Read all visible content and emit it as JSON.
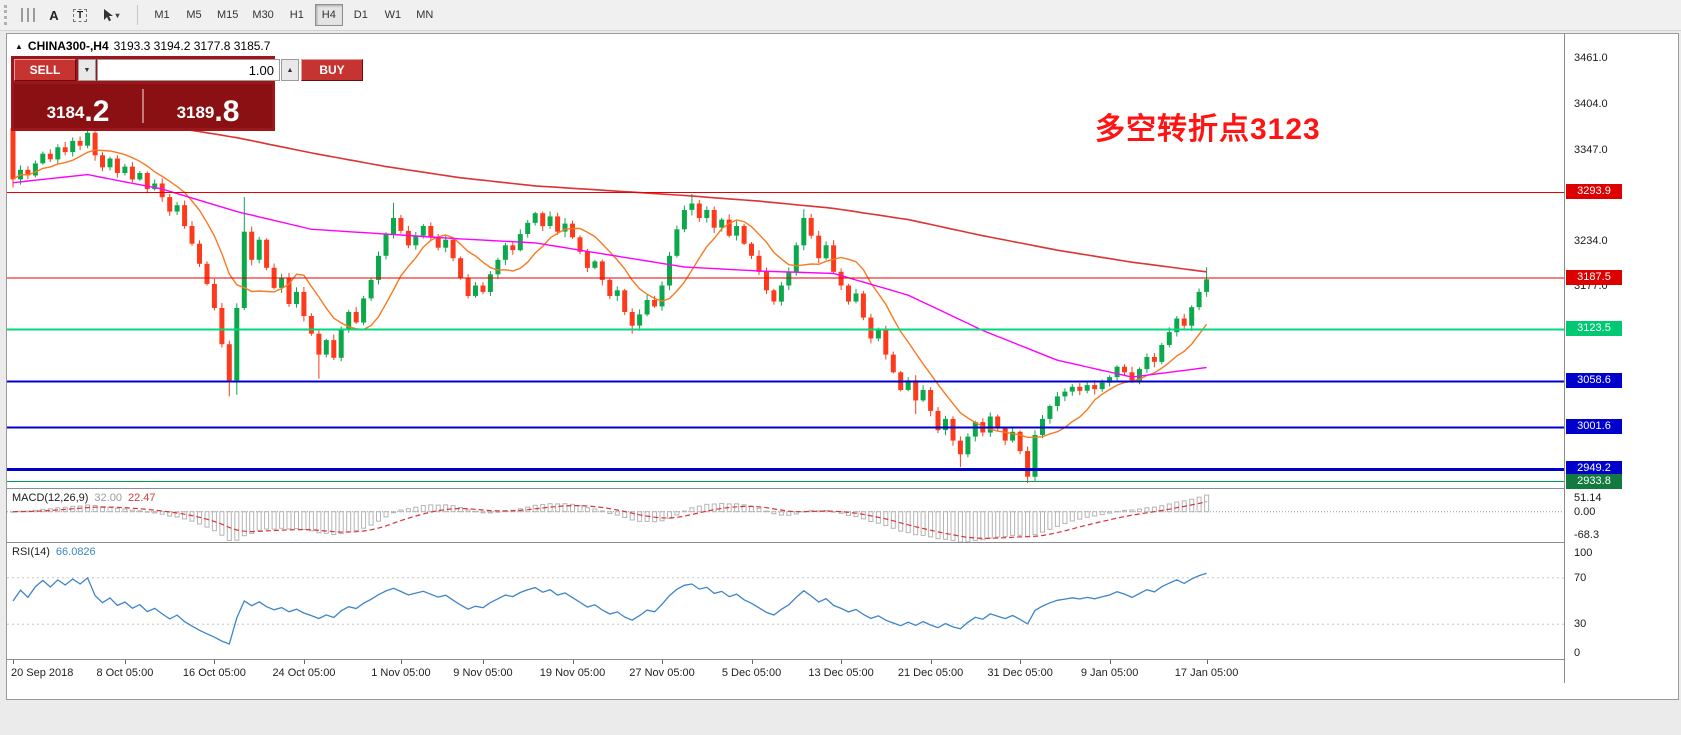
{
  "colors": {
    "trade-panel-bg": "#9c161a",
    "trade-button": "#c53431",
    "trade-price-bg": "#8a1013",
    "annotation-red": "#ff1414",
    "up-candle": "#0ba94c",
    "down-candle": "#fd3b1c",
    "macd-signal": "#d83434",
    "rsi-blue": "#3d85c8"
  },
  "toolbar": {
    "icons": {
      "text_label_glyph": "A",
      "text_box_glyph": "T",
      "cursor_caret": "▾"
    },
    "timeframes": [
      {
        "label": "M1",
        "active": false
      },
      {
        "label": "M5",
        "active": false
      },
      {
        "label": "M15",
        "active": false
      },
      {
        "label": "M30",
        "active": false
      },
      {
        "label": "H1",
        "active": false
      },
      {
        "label": "H4",
        "active": true
      },
      {
        "label": "D1",
        "active": false
      },
      {
        "label": "W1",
        "active": false
      },
      {
        "label": "MN",
        "active": false
      }
    ]
  },
  "chart": {
    "symbol_line": {
      "collapse_glyph": "▲",
      "symbol": "CHINA300-,H4",
      "ohlc": "3193.3 3194.2 3177.8 3185.7"
    },
    "trade_panel": {
      "sell_label": "SELL",
      "buy_label": "BUY",
      "volume": "1.00",
      "volume_down_glyph": "▼",
      "volume_up_glyph": "▲",
      "bid_main": "3184",
      "bid_pip": ".2",
      "ask_main": "3189",
      "ask_pip": ".8"
    },
    "annotation": {
      "text": "多空转折点3123"
    }
  },
  "chart_data": {
    "type": "candlestick",
    "symbol": "CHINA300-",
    "timeframe": "H4",
    "ohlc_display": {
      "open": "3193.3",
      "high": "3194.2",
      "low": "3177.8",
      "close": "3185.7"
    },
    "ylim": [
      2926,
      3491
    ],
    "open_first": 3374,
    "closes": [
      3310,
      3322,
      3315,
      3330,
      3342,
      3335,
      3350,
      3344,
      3358,
      3352,
      3368,
      3340,
      3325,
      3336,
      3318,
      3326,
      3310,
      3318,
      3298,
      3305,
      3288,
      3270,
      3278,
      3252,
      3230,
      3205,
      3180,
      3150,
      3105,
      3060,
      3150,
      3245,
      3210,
      3235,
      3200,
      3175,
      3188,
      3155,
      3170,
      3140,
      3118,
      3092,
      3110,
      3088,
      3122,
      3145,
      3132,
      3162,
      3185,
      3215,
      3242,
      3262,
      3246,
      3228,
      3240,
      3252,
      3238,
      3225,
      3235,
      3212,
      3188,
      3165,
      3178,
      3170,
      3192,
      3210,
      3228,
      3222,
      3242,
      3256,
      3268,
      3252,
      3264,
      3245,
      3255,
      3238,
      3220,
      3200,
      3208,
      3185,
      3165,
      3172,
      3145,
      3128,
      3142,
      3160,
      3152,
      3178,
      3215,
      3248,
      3272,
      3280,
      3262,
      3272,
      3250,
      3260,
      3240,
      3252,
      3230,
      3215,
      3195,
      3172,
      3158,
      3178,
      3195,
      3228,
      3262,
      3240,
      3212,
      3228,
      3195,
      3178,
      3158,
      3168,
      3138,
      3112,
      3122,
      3092,
      3070,
      3048,
      3060,
      3035,
      3048,
      3022,
      2998,
      3012,
      2985,
      2968,
      2990,
      3008,
      2995,
      3015,
      3000,
      2985,
      2996,
      2972,
      2940,
      2992,
      3012,
      3028,
      3040,
      3046,
      3052,
      3047,
      3054,
      3049,
      3057,
      3064,
      3077,
      3070,
      3060,
      3074,
      3089,
      3083,
      3104,
      3120,
      3137,
      3128,
      3151,
      3170,
      3185.7
    ],
    "wick_overrides": {
      "0": {
        "high": 3377,
        "low": 3300
      },
      "10": {
        "high": 3376
      },
      "29": {
        "low": 3040
      },
      "30": {
        "low": 3042
      },
      "31": {
        "high": 3288
      },
      "41": {
        "low": 3062
      },
      "51": {
        "high": 3281
      },
      "83": {
        "low": 3118
      },
      "91": {
        "high": 3292
      },
      "106": {
        "high": 3273
      },
      "121": {
        "low": 3018
      },
      "127": {
        "low": 2952
      },
      "136": {
        "low": 2932
      },
      "160": {
        "high": 3200.8
      }
    },
    "ma": {
      "fast_period": 9,
      "fast_color": "#f97a20",
      "mid_color": "#ff00ff",
      "slow_color": "#dd3333",
      "sample_step": 10,
      "mid_points": [
        3306,
        3316,
        3298,
        3270,
        3248,
        3242,
        3236,
        3231,
        3216,
        3201,
        3196,
        3193,
        3166,
        3122,
        3085,
        3064,
        3076
      ],
      "slow_points": [
        3407,
        3392,
        3377,
        3362,
        3343,
        3326,
        3312,
        3302,
        3296,
        3290,
        3283,
        3274,
        3260,
        3240,
        3222,
        3207,
        3195
      ]
    },
    "levels": [
      {
        "label": "3293.9",
        "price": 3293.9,
        "line": "#e60000",
        "width": 1,
        "badge": "#dd0000"
      },
      {
        "label": "3187.5",
        "price": 3187.5,
        "line": "#e60000",
        "width": 1,
        "badge": "#dd0000"
      },
      {
        "label": "3123.5",
        "price": 3123.5,
        "line": "#00d87e",
        "width": 2,
        "badge": "#00c873"
      },
      {
        "label": "3058.6",
        "price": 3058.6,
        "line": "#0000cc",
        "width": 2,
        "badge": "#0000cc"
      },
      {
        "label": "3001.6",
        "price": 3001.6,
        "line": "#0000cc",
        "width": 2,
        "badge": "#0000cc"
      },
      {
        "label": "2949.2",
        "price": 2949.2,
        "line": "#0000cc",
        "width": 3,
        "badge": "#0000cc"
      },
      {
        "label": "2933.8",
        "price": 2933.8,
        "line": "#00a050",
        "width": 1,
        "badge": "#127a40"
      }
    ],
    "axis_ticks": [
      {
        "label": "3461.0",
        "price": 3461
      },
      {
        "label": "3404.0",
        "price": 3404
      },
      {
        "label": "3347.0",
        "price": 3347
      },
      {
        "label": "3234.0",
        "price": 3234
      },
      {
        "label": "3177.0",
        "price": 3177
      }
    ],
    "x_labels": [
      "20 Sep 2018",
      "8 Oct 05:00",
      "16 Oct 05:00",
      "24 Oct 05:00",
      "1 Nov 05:00",
      "9 Nov 05:00",
      "19 Nov 05:00",
      "27 Nov 05:00",
      "5 Dec 05:00",
      "13 Dec 05:00",
      "21 Dec 05:00",
      "31 Dec 05:00",
      "9 Jan 05:00",
      "17 Jan 05:00"
    ],
    "tick_indices": [
      0,
      15,
      27,
      39,
      52,
      63,
      75,
      87,
      99,
      111,
      123,
      135,
      147,
      160
    ],
    "macd": {
      "name": "MACD(12,26,9)",
      "main_value": "32.00",
      "signal_value": "22.47",
      "axis": [
        "51.14",
        "0.00",
        "-68.3"
      ],
      "range": [
        -68.3,
        51.14
      ]
    },
    "rsi": {
      "name": "RSI(14)",
      "value": "66.0826",
      "axis": [
        "100",
        "70",
        "30",
        "0"
      ],
      "levels": [
        70,
        30
      ]
    }
  }
}
